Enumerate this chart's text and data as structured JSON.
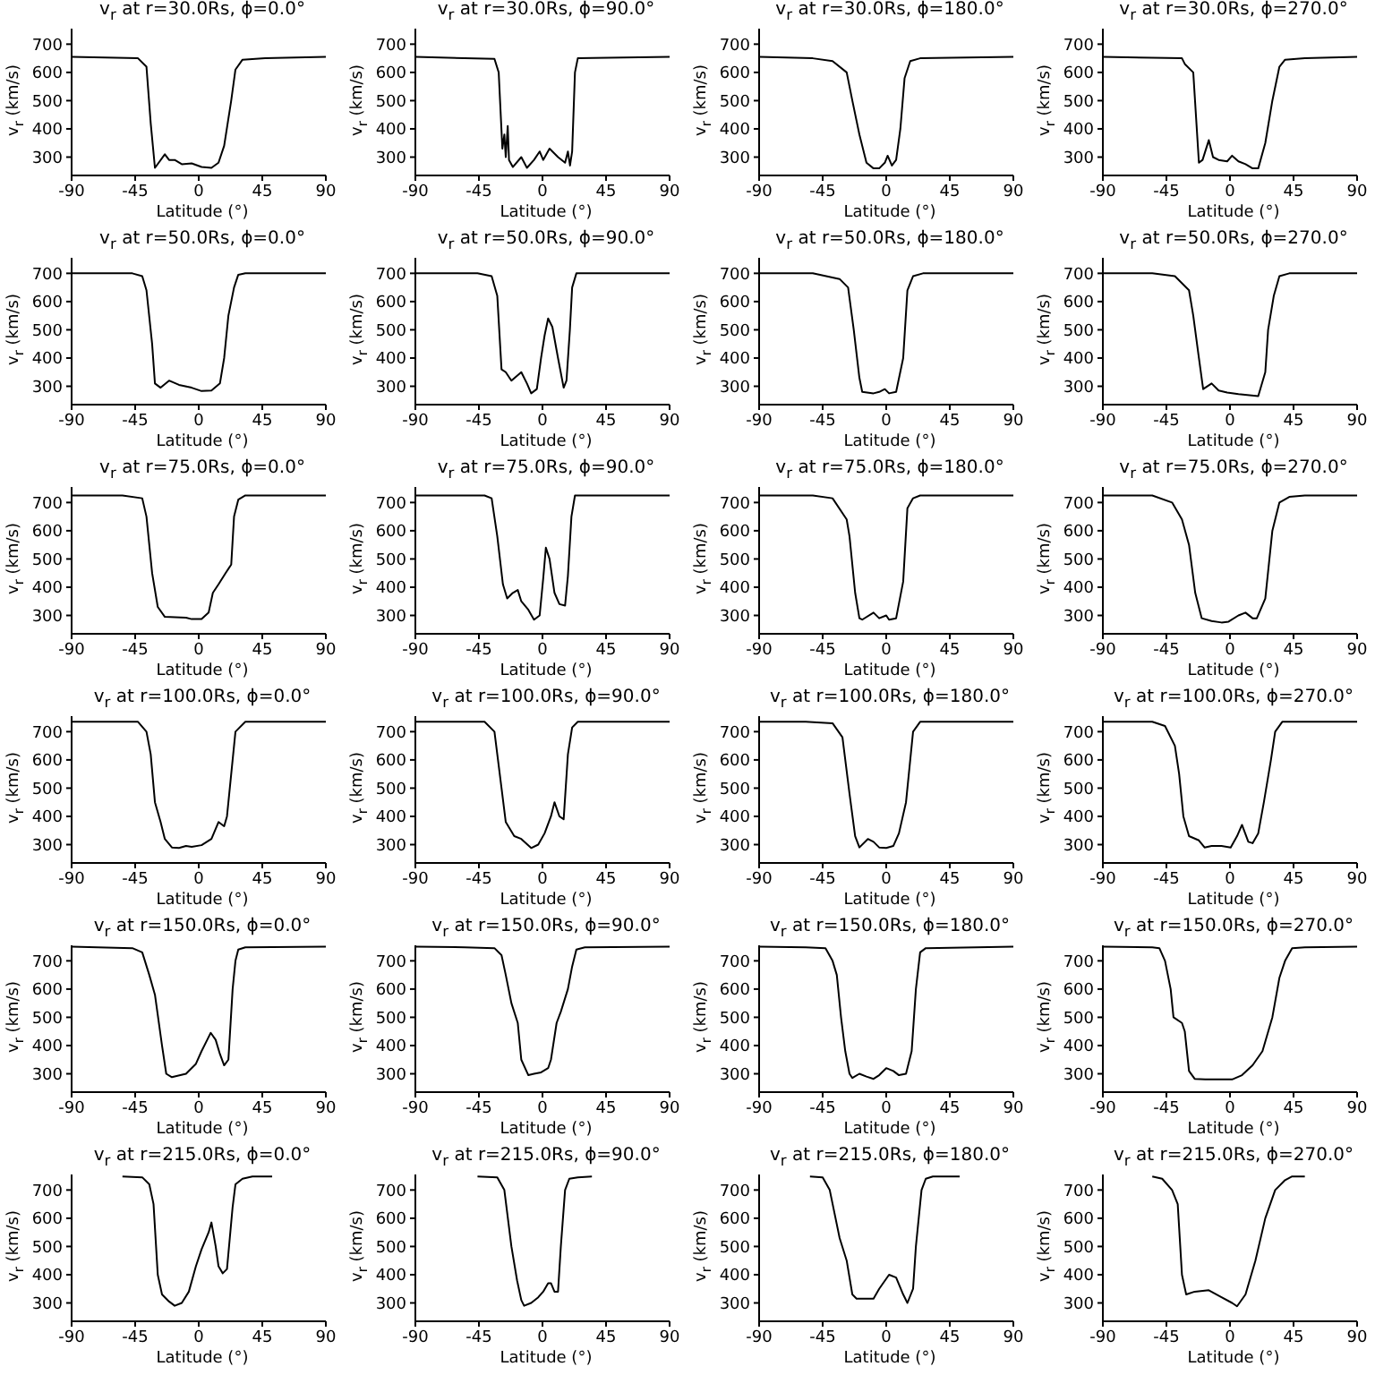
{
  "chart_data": [
    {
      "type": "line",
      "title": "v$_{r}$ at r=30.0Rs, ϕ=0.0°",
      "xlabel": "Latitude (°)",
      "ylabel": "v$_{r}$ (km/s)",
      "color": "#000000",
      "xlim": [
        -90,
        90
      ],
      "xticks": [
        -90,
        -45,
        0,
        45,
        90
      ],
      "ylim": [
        235,
        755
      ],
      "yticks": [
        300,
        400,
        500,
        600,
        700
      ],
      "x": [
        -90,
        -43,
        -37,
        -34,
        -31,
        -24,
        -21,
        -17,
        -12,
        -5,
        2,
        9,
        14,
        18,
        23,
        26,
        31,
        47,
        90
      ],
      "values": [
        655,
        650,
        620,
        420,
        262,
        310,
        290,
        290,
        275,
        278,
        265,
        262,
        280,
        340,
        500,
        610,
        645,
        650,
        655
      ]
    },
    {
      "type": "line",
      "title": "v$_{r}$ at r=30.0Rs, ϕ=90.0°",
      "xlabel": "Latitude (°)",
      "ylabel": "v$_{r}$ (km/s)",
      "color": "#000000",
      "xlim": [
        -90,
        90
      ],
      "xticks": [
        -90,
        -45,
        0,
        45,
        90
      ],
      "ylim": [
        235,
        755
      ],
      "yticks": [
        300,
        400,
        500,
        600,
        700
      ],
      "x": [
        -90,
        -34,
        -31,
        -28.4,
        -27,
        -26,
        -24.6,
        -23.7,
        -21,
        -15,
        -11,
        -6,
        -2,
        0.5,
        5,
        11,
        16,
        18,
        19.5,
        21,
        23,
        25,
        90
      ],
      "values": [
        655,
        648,
        600,
        330,
        380,
        300,
        410,
        290,
        265,
        300,
        262,
        290,
        320,
        290,
        330,
        300,
        280,
        320,
        270,
        320,
        600,
        650,
        655
      ]
    },
    {
      "type": "line",
      "title": "v$_{r}$ at r=30.0Rs, ϕ=180.0°",
      "xlabel": "Latitude (°)",
      "ylabel": "v$_{r}$ (km/s)",
      "color": "#000000",
      "xlim": [
        -90,
        90
      ],
      "xticks": [
        -90,
        -45,
        0,
        45,
        90
      ],
      "ylim": [
        235,
        755
      ],
      "yticks": [
        300,
        400,
        500,
        600,
        700
      ],
      "x": [
        -90,
        -52,
        -38,
        -28,
        -24,
        -19,
        -14,
        -9,
        -5,
        -1,
        1,
        4,
        7,
        10,
        13,
        17,
        24,
        90
      ],
      "values": [
        655,
        650,
        640,
        600,
        500,
        380,
        280,
        260,
        260,
        280,
        305,
        270,
        290,
        400,
        580,
        640,
        650,
        655
      ]
    },
    {
      "type": "line",
      "title": "v$_{r}$ at r=30.0Rs, ϕ=270.0°",
      "xlabel": "Latitude (°)",
      "ylabel": "v$_{r}$ (km/s)",
      "color": "#000000",
      "xlim": [
        -90,
        90
      ],
      "xticks": [
        -90,
        -45,
        0,
        45,
        90
      ],
      "ylim": [
        235,
        755
      ],
      "yticks": [
        300,
        400,
        500,
        600,
        700
      ],
      "x": [
        -90,
        -34,
        -32,
        -26,
        -22,
        -19.4,
        -15,
        -12,
        -8,
        -2,
        1.5,
        6,
        11,
        16,
        20,
        25,
        30,
        35,
        39,
        53,
        90
      ],
      "values": [
        655,
        650,
        630,
        600,
        280,
        290,
        360,
        300,
        290,
        285,
        305,
        285,
        275,
        260,
        260,
        350,
        500,
        620,
        645,
        650,
        655
      ]
    },
    {
      "type": "line",
      "title": "v$_{r}$ at r=50.0Rs, ϕ=0.0°",
      "xlabel": "Latitude (°)",
      "ylabel": "v$_{r}$ (km/s)",
      "color": "#000000",
      "xlim": [
        -90,
        90
      ],
      "xticks": [
        -90,
        -45,
        0,
        45,
        90
      ],
      "ylim": [
        235,
        755
      ],
      "yticks": [
        300,
        400,
        500,
        600,
        700
      ],
      "x": [
        -90,
        -47,
        -40,
        -37,
        -33,
        -31,
        -27,
        -21,
        -14,
        -5,
        2,
        9,
        15,
        18,
        21,
        25,
        28,
        33,
        90
      ],
      "values": [
        700,
        700,
        690,
        640,
        450,
        310,
        295,
        320,
        305,
        295,
        283,
        285,
        310,
        400,
        550,
        650,
        695,
        700,
        700
      ]
    },
    {
      "type": "line",
      "title": "v$_{r}$ at r=50.0Rs, ϕ=90.0°",
      "xlabel": "Latitude (°)",
      "ylabel": "v$_{r}$ (km/s)",
      "color": "#000000",
      "xlim": [
        -90,
        90
      ],
      "xticks": [
        -90,
        -45,
        0,
        45,
        90
      ],
      "ylim": [
        235,
        755
      ],
      "yticks": [
        300,
        400,
        500,
        600,
        700
      ],
      "x": [
        -90,
        -46,
        -36,
        -32,
        -29,
        -26,
        -22,
        -15,
        -11,
        -8,
        -4,
        -1,
        1.5,
        4,
        7,
        11,
        15,
        17,
        19.4,
        21,
        24,
        90
      ],
      "values": [
        700,
        700,
        690,
        620,
        360,
        350,
        320,
        350,
        310,
        275,
        290,
        400,
        480,
        540,
        510,
        400,
        295,
        320,
        500,
        650,
        700,
        700
      ]
    },
    {
      "type": "line",
      "title": "v$_{r}$ at r=50.0Rs, ϕ=180.0°",
      "xlabel": "Latitude (°)",
      "ylabel": "v$_{r}$ (km/s)",
      "color": "#000000",
      "xlim": [
        -90,
        90
      ],
      "xticks": [
        -90,
        -45,
        0,
        45,
        90
      ],
      "ylim": [
        235,
        755
      ],
      "yticks": [
        300,
        400,
        500,
        600,
        700
      ],
      "x": [
        -90,
        -52,
        -33,
        -27,
        -23,
        -19,
        -17,
        -9,
        -5,
        -1,
        2,
        7,
        12,
        15,
        19,
        26,
        90
      ],
      "values": [
        700,
        700,
        680,
        650,
        500,
        330,
        280,
        275,
        280,
        290,
        275,
        280,
        400,
        640,
        690,
        700,
        700
      ]
    },
    {
      "type": "line",
      "title": "v$_{r}$ at r=50.0Rs, ϕ=270.0°",
      "xlabel": "Latitude (°)",
      "ylabel": "v$_{r}$ (km/s)",
      "color": "#000000",
      "xlim": [
        -90,
        90
      ],
      "xticks": [
        -90,
        -45,
        0,
        45,
        90
      ],
      "ylim": [
        235,
        755
      ],
      "yticks": [
        300,
        400,
        500,
        600,
        700
      ],
      "x": [
        -90,
        -55,
        -39,
        -29,
        -26,
        -22,
        -19,
        -13,
        -8,
        -2,
        6,
        20,
        25,
        27,
        31,
        35,
        42,
        90
      ],
      "values": [
        700,
        700,
        690,
        640,
        550,
        400,
        290,
        310,
        285,
        278,
        272,
        265,
        350,
        500,
        620,
        690,
        700,
        700
      ]
    },
    {
      "type": "line",
      "title": "v$_{r}$ at r=75.0Rs, ϕ=0.0°",
      "xlabel": "Latitude (°)",
      "ylabel": "v$_{r}$ (km/s)",
      "color": "#000000",
      "xlim": [
        -90,
        90
      ],
      "xticks": [
        -90,
        -45,
        0,
        45,
        90
      ],
      "ylim": [
        235,
        755
      ],
      "yticks": [
        300,
        400,
        500,
        600,
        700
      ],
      "x": [
        -90,
        -54,
        -40,
        -37,
        -33,
        -29,
        -24,
        -9,
        -5,
        2,
        7,
        10,
        14,
        19,
        23,
        25,
        28,
        33,
        90
      ],
      "values": [
        725,
        725,
        715,
        650,
        450,
        330,
        295,
        292,
        287,
        287,
        310,
        380,
        410,
        450,
        480,
        650,
        710,
        725,
        725
      ]
    },
    {
      "type": "line",
      "title": "v$_{r}$ at r=75.0Rs, ϕ=90.0°",
      "xlabel": "Latitude (°)",
      "ylabel": "v$_{r}$ (km/s)",
      "color": "#000000",
      "xlim": [
        -90,
        90
      ],
      "xticks": [
        -90,
        -45,
        0,
        45,
        90
      ],
      "ylim": [
        235,
        755
      ],
      "yticks": [
        300,
        400,
        500,
        600,
        700
      ],
      "x": [
        -90,
        -41,
        -36,
        -32,
        -28,
        -25,
        -21,
        -17.5,
        -15,
        -10,
        -6,
        -2,
        0.5,
        2.4,
        5,
        8.5,
        12,
        16,
        18,
        20.5,
        23,
        90
      ],
      "values": [
        725,
        725,
        715,
        580,
        410,
        360,
        380,
        390,
        350,
        320,
        285,
        300,
        430,
        540,
        500,
        380,
        340,
        335,
        440,
        650,
        725,
        725
      ]
    },
    {
      "type": "line",
      "title": "v$_{r}$ at r=75.0Rs, ϕ=180.0°",
      "xlabel": "Latitude (°)",
      "ylabel": "v$_{r}$ (km/s)",
      "color": "#000000",
      "xlim": [
        -90,
        90
      ],
      "xticks": [
        -90,
        -45,
        0,
        45,
        90
      ],
      "ylim": [
        235,
        755
      ],
      "yticks": [
        300,
        400,
        500,
        600,
        700
      ],
      "x": [
        -90,
        -52,
        -38,
        -28,
        -26,
        -22,
        -19,
        -17,
        -9,
        -5,
        0,
        2,
        7,
        12,
        15,
        19,
        24,
        90
      ],
      "values": [
        725,
        725,
        715,
        640,
        580,
        380,
        290,
        285,
        310,
        290,
        300,
        285,
        290,
        420,
        680,
        715,
        725,
        725
      ]
    },
    {
      "type": "line",
      "title": "v$_{r}$ at r=75.0Rs, ϕ=270.0°",
      "xlabel": "Latitude (°)",
      "ylabel": "v$_{r}$ (km/s)",
      "color": "#000000",
      "xlim": [
        -90,
        90
      ],
      "xticks": [
        -90,
        -45,
        0,
        45,
        90
      ],
      "ylim": [
        235,
        755
      ],
      "yticks": [
        300,
        400,
        500,
        600,
        700
      ],
      "x": [
        -90,
        -55,
        -41,
        -34,
        -29,
        -24.6,
        -20,
        -13,
        -6,
        -1,
        6,
        11,
        16,
        19,
        25,
        30,
        35,
        42,
        53,
        90
      ],
      "values": [
        725,
        725,
        700,
        640,
        550,
        380,
        290,
        280,
        275,
        278,
        300,
        310,
        290,
        290,
        360,
        600,
        700,
        720,
        725,
        725
      ]
    },
    {
      "type": "line",
      "title": "v$_{r}$ at r=100.0Rs, ϕ=0.0°",
      "xlabel": "Latitude (°)",
      "ylabel": "v$_{r}$ (km/s)",
      "color": "#000000",
      "xlim": [
        -90,
        90
      ],
      "xticks": [
        -90,
        -45,
        0,
        45,
        90
      ],
      "ylim": [
        235,
        755
      ],
      "yticks": [
        300,
        400,
        500,
        600,
        700
      ],
      "x": [
        -90,
        -43,
        -37,
        -34,
        -31,
        -27,
        -24,
        -19,
        -14,
        -9,
        -5,
        2,
        9,
        14,
        18,
        20,
        24,
        26,
        33,
        90
      ],
      "values": [
        735,
        735,
        700,
        620,
        450,
        380,
        320,
        290,
        288,
        295,
        292,
        298,
        320,
        380,
        365,
        400,
        600,
        700,
        735,
        735
      ]
    },
    {
      "type": "line",
      "title": "v$_{r}$ at r=100.0Rs, ϕ=90.0°",
      "xlabel": "Latitude (°)",
      "ylabel": "v$_{r}$ (km/s)",
      "color": "#000000",
      "xlim": [
        -90,
        90
      ],
      "xticks": [
        -90,
        -45,
        0,
        45,
        90
      ],
      "ylim": [
        235,
        755
      ],
      "yticks": [
        300,
        400,
        500,
        600,
        700
      ],
      "x": [
        -90,
        -41,
        -34,
        -29,
        -26,
        -20,
        -15,
        -8,
        -3,
        1.5,
        6,
        8.5,
        12,
        15,
        18,
        21,
        25,
        90
      ],
      "values": [
        735,
        735,
        700,
        500,
        380,
        330,
        320,
        288,
        300,
        340,
        400,
        450,
        400,
        390,
        620,
        715,
        735,
        735
      ]
    },
    {
      "type": "line",
      "title": "v$_{r}$ at r=100.0Rs, ϕ=180.0°",
      "xlabel": "Latitude (°)",
      "ylabel": "v$_{r}$ (km/s)",
      "color": "#000000",
      "xlim": [
        -90,
        90
      ],
      "xticks": [
        -90,
        -45,
        0,
        45,
        90
      ],
      "ylim": [
        235,
        755
      ],
      "yticks": [
        300,
        400,
        500,
        600,
        700
      ],
      "x": [
        -90,
        -57,
        -38,
        -31,
        -26,
        -22,
        -19,
        -13,
        -9,
        -5,
        0,
        5,
        9,
        14,
        17,
        19,
        24,
        90
      ],
      "values": [
        735,
        735,
        730,
        680,
        480,
        330,
        290,
        320,
        310,
        290,
        288,
        295,
        340,
        450,
        600,
        700,
        735,
        735
      ]
    },
    {
      "type": "line",
      "title": "v$_{r}$ at r=100.0Rs, ϕ=270.0°",
      "xlabel": "Latitude (°)",
      "ylabel": "v$_{r}$ (km/s)",
      "color": "#000000",
      "xlim": [
        -90,
        90
      ],
      "xticks": [
        -90,
        -45,
        0,
        45,
        90
      ],
      "ylim": [
        235,
        755
      ],
      "yticks": [
        300,
        400,
        500,
        600,
        700
      ],
      "x": [
        -90,
        -55,
        -46,
        -39,
        -36,
        -33,
        -29,
        -22,
        -18,
        -13,
        -6,
        0.5,
        5,
        8.5,
        13,
        16,
        20,
        24,
        29,
        32,
        37,
        90
      ],
      "values": [
        735,
        735,
        720,
        650,
        550,
        400,
        330,
        315,
        290,
        295,
        295,
        290,
        330,
        370,
        310,
        305,
        340,
        450,
        600,
        700,
        735,
        735
      ]
    },
    {
      "type": "line",
      "title": "v$_{r}$ at r=150.0Rs, ϕ=0.0°",
      "xlabel": "Latitude (°)",
      "ylabel": "v$_{r}$ (km/s)",
      "color": "#000000",
      "xlim": [
        -90,
        90
      ],
      "xticks": [
        -90,
        -45,
        0,
        45,
        90
      ],
      "ylim": [
        235,
        755
      ],
      "yticks": [
        300,
        400,
        500,
        600,
        700
      ],
      "x": [
        -90,
        -47,
        -40,
        -35,
        -31,
        -26,
        -23,
        -19,
        -9,
        -2,
        2,
        6,
        8.5,
        12,
        15,
        18,
        21,
        24,
        26,
        28,
        33,
        90
      ],
      "values": [
        750,
        745,
        730,
        650,
        580,
        400,
        300,
        288,
        300,
        335,
        380,
        420,
        445,
        420,
        370,
        330,
        350,
        600,
        700,
        740,
        748,
        750
      ]
    },
    {
      "type": "line",
      "title": "v$_{r}$ at r=150.0Rs, ϕ=90.0°",
      "xlabel": "Latitude (°)",
      "ylabel": "v$_{r}$ (km/s)",
      "color": "#000000",
      "xlim": [
        -90,
        90
      ],
      "xticks": [
        -90,
        -45,
        0,
        45,
        90
      ],
      "ylim": [
        235,
        755
      ],
      "yticks": [
        300,
        400,
        500,
        600,
        700
      ],
      "x": [
        -90,
        -55,
        -34,
        -29,
        -26,
        -22,
        -17.5,
        -15,
        -10,
        -6,
        -1,
        4,
        6,
        10,
        13,
        18,
        21,
        24,
        30,
        90
      ],
      "values": [
        750,
        748,
        745,
        720,
        650,
        550,
        480,
        350,
        295,
        300,
        305,
        320,
        350,
        480,
        520,
        600,
        680,
        740,
        748,
        750
      ]
    },
    {
      "type": "line",
      "title": "v$_{r}$ at r=150.0Rs, ϕ=180.0°",
      "xlabel": "Latitude (°)",
      "ylabel": "v$_{r}$ (km/s)",
      "color": "#000000",
      "xlim": [
        -90,
        90
      ],
      "xticks": [
        -90,
        -45,
        0,
        45,
        90
      ],
      "ylim": [
        235,
        755
      ],
      "yticks": [
        300,
        400,
        500,
        600,
        700
      ],
      "x": [
        -90,
        -57,
        -43,
        -38,
        -35,
        -32,
        -29,
        -26,
        -24,
        -19,
        -14,
        -9,
        -5,
        0,
        5,
        9,
        14,
        18,
        21,
        24,
        28,
        90
      ],
      "values": [
        750,
        748,
        745,
        700,
        650,
        500,
        380,
        300,
        285,
        300,
        290,
        282,
        295,
        320,
        310,
        295,
        300,
        380,
        600,
        730,
        745,
        750
      ]
    },
    {
      "type": "line",
      "title": "v$_{r}$ at r=150.0Rs, ϕ=270.0°",
      "xlabel": "Latitude (°)",
      "ylabel": "v$_{r}$ (km/s)",
      "color": "#000000",
      "xlim": [
        -90,
        90
      ],
      "xticks": [
        -90,
        -45,
        0,
        45,
        90
      ],
      "ylim": [
        235,
        755
      ],
      "yticks": [
        300,
        400,
        500,
        600,
        700
      ],
      "x": [
        -90,
        -55,
        -50,
        -46,
        -42,
        -40,
        -34,
        -32,
        -29,
        -25,
        -17.5,
        -8,
        1.5,
        8.5,
        16,
        23,
        30,
        35,
        39,
        44,
        53,
        90
      ],
      "values": [
        750,
        748,
        745,
        700,
        600,
        500,
        480,
        450,
        310,
        282,
        280,
        280,
        280,
        295,
        330,
        380,
        500,
        640,
        700,
        745,
        748,
        750
      ]
    },
    {
      "type": "line",
      "title": "v$_{r}$ at r=215.0Rs, ϕ=0.0°",
      "xlabel": "Latitude (°)",
      "ylabel": "v$_{r}$ (km/s)",
      "color": "#000000",
      "xlim": [
        -90,
        90
      ],
      "xticks": [
        -90,
        -45,
        0,
        45,
        90
      ],
      "ylim": [
        235,
        755
      ],
      "yticks": [
        300,
        400,
        500,
        600,
        700
      ],
      "x": [
        -54,
        -40,
        -35,
        -32,
        -29,
        -26,
        -21,
        -17,
        -12,
        -7,
        -2,
        2,
        7,
        9,
        12,
        14,
        17,
        20,
        24,
        26,
        31,
        38,
        52
      ],
      "values": [
        748,
        745,
        720,
        650,
        400,
        330,
        305,
        290,
        300,
        340,
        430,
        490,
        550,
        585,
        500,
        430,
        405,
        420,
        640,
        720,
        740,
        748,
        748
      ]
    },
    {
      "type": "line",
      "title": "v$_{r}$ at r=215.0Rs, ϕ=90.0°",
      "xlabel": "Latitude (°)",
      "ylabel": "v$_{r}$ (km/s)",
      "color": "#000000",
      "xlim": [
        -90,
        90
      ],
      "xticks": [
        -90,
        -45,
        0,
        45,
        90
      ],
      "ylim": [
        235,
        755
      ],
      "yticks": [
        300,
        400,
        500,
        600,
        700
      ],
      "x": [
        -46,
        -32,
        -27,
        -22,
        -18,
        -15,
        -13,
        -8,
        -3,
        0.5,
        4,
        6,
        8.5,
        11,
        13,
        16,
        19,
        25,
        35
      ],
      "values": [
        748,
        745,
        700,
        500,
        380,
        310,
        290,
        300,
        320,
        340,
        370,
        370,
        340,
        340,
        500,
        700,
        740,
        745,
        748
      ]
    },
    {
      "type": "line",
      "title": "v$_{r}$ at r=215.0Rs, ϕ=180.0°",
      "xlabel": "Latitude (°)",
      "ylabel": "v$_{r}$ (km/s)",
      "color": "#000000",
      "xlim": [
        -90,
        90
      ],
      "xticks": [
        -90,
        -45,
        0,
        45,
        90
      ],
      "ylim": [
        235,
        755
      ],
      "yticks": [
        300,
        400,
        500,
        600,
        700
      ],
      "x": [
        -54,
        -45,
        -40,
        -33,
        -28,
        -24,
        -21,
        -9,
        -5,
        2,
        7,
        12,
        15,
        19,
        21,
        25,
        28,
        33,
        52
      ],
      "values": [
        748,
        745,
        700,
        530,
        450,
        330,
        315,
        315,
        350,
        400,
        390,
        330,
        300,
        350,
        500,
        700,
        740,
        748,
        748
      ]
    },
    {
      "type": "line",
      "title": "v$_{r}$ at r=215.0Rs, ϕ=270.0°",
      "xlabel": "Latitude (°)",
      "ylabel": "v$_{r}$ (km/s)",
      "color": "#000000",
      "xlim": [
        -90,
        90
      ],
      "xticks": [
        -90,
        -45,
        0,
        45,
        90
      ],
      "ylim": [
        235,
        755
      ],
      "yticks": [
        300,
        400,
        500,
        600,
        700
      ],
      "x": [
        -55,
        -48,
        -41,
        -37,
        -34,
        -31,
        -25,
        -15,
        -6,
        1.5,
        5,
        11,
        18,
        25,
        32,
        39,
        44,
        53
      ],
      "values": [
        748,
        740,
        700,
        650,
        400,
        330,
        340,
        345,
        320,
        300,
        288,
        330,
        450,
        600,
        700,
        735,
        748,
        748
      ]
    }
  ]
}
